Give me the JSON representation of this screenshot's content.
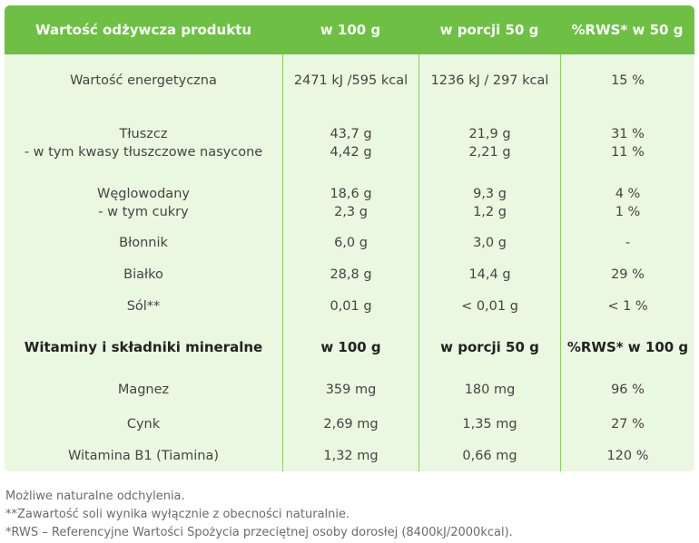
{
  "header": [
    "Wartość odżywcza produktu",
    "w 100 g",
    "w porcji 50 g",
    "%RWS* w 50 g"
  ],
  "rows": [
    {
      "name": [
        "Wartość energetyczna"
      ],
      "v100": [
        "2471 kJ /595 kcal"
      ],
      "v50": [
        "1236 kJ / 297 kcal"
      ],
      "rws": [
        "15 %"
      ]
    },
    {
      "name": [
        "Tłuszcz",
        "- w tym kwasy tłuszczowe nasycone"
      ],
      "v100": [
        "43,7 g",
        "4,42 g"
      ],
      "v50": [
        "21,9 g",
        "2,21 g"
      ],
      "rws": [
        "31 %",
        "11 %"
      ]
    },
    {
      "name": [
        "Węglowodany",
        "- w tym cukry"
      ],
      "v100": [
        "18,6 g",
        "2,3 g"
      ],
      "v50": [
        "9,3 g",
        "1,2 g"
      ],
      "rws": [
        "4 %",
        "1 %"
      ]
    },
    {
      "name": [
        "Błonnik"
      ],
      "v100": [
        "6,0 g"
      ],
      "v50": [
        "3,0 g"
      ],
      "rws": [
        "-"
      ]
    },
    {
      "name": [
        "Białko"
      ],
      "v100": [
        "28,8 g"
      ],
      "v50": [
        "14,4 g"
      ],
      "rws": [
        "29 %"
      ]
    },
    {
      "name": [
        "Sól**"
      ],
      "v100": [
        "0,01 g"
      ],
      "v50": [
        "< 0,01 g"
      ],
      "rws": [
        "< 1 %"
      ]
    }
  ],
  "subheader": [
    "Witaminy i składniki mineralne",
    "w 100 g",
    "w porcji 50 g",
    "%RWS* w 100 g"
  ],
  "rows2": [
    {
      "name": [
        "Magnez"
      ],
      "v100": [
        "359 mg"
      ],
      "v50": [
        "180 mg"
      ],
      "rws": [
        "96 %"
      ]
    },
    {
      "name": [
        "Cynk"
      ],
      "v100": [
        "2,69 mg"
      ],
      "v50": [
        "1,35 mg"
      ],
      "rws": [
        "27 %"
      ]
    },
    {
      "name": [
        "Witamina B1 (Tiamina)"
      ],
      "v100": [
        "1,32 mg"
      ],
      "v50": [
        "0,66 mg"
      ],
      "rws": [
        "120 %"
      ]
    }
  ],
  "footnotes": [
    "Możliwe naturalne odchylenia.",
    "**Zawartość soli wynika wyłącznie z obecności naturalnie.",
    "*RWS – Referencyjne Wartości Spożycia przeciętnej osoby dorosłej (8400kJ/2000kcal)."
  ],
  "colors": {
    "header": "#6dc043",
    "body": "#eaf7e1",
    "divider": "#8ccf5d"
  }
}
